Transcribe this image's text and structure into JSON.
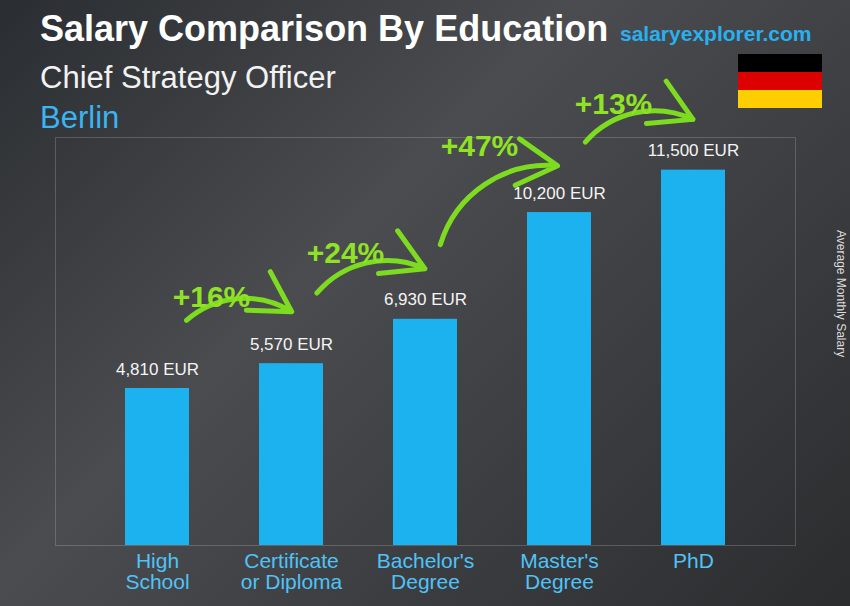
{
  "chart_data": {
    "type": "bar",
    "title": "Salary Comparison By Education",
    "subtitle": "Chief Strategy Officer",
    "location": "Berlin",
    "source": "salaryexplorer.com",
    "ylabel": "Average Monthly Salary",
    "categories": [
      "High School",
      "Certificate or Diploma",
      "Bachelor's Degree",
      "Master's Degree",
      "PhD"
    ],
    "values": [
      4810,
      5570,
      6930,
      10200,
      11500
    ],
    "value_labels": [
      "4,810 EUR",
      "5,570 EUR",
      "6,930 EUR",
      "10,200 EUR",
      "11,500 EUR"
    ],
    "annotations": [
      "+16%",
      "+24%",
      "+47%",
      "+13%"
    ],
    "color": "#1cb2ef",
    "ylim": [
      0,
      12500
    ],
    "yticks": [],
    "tick_labels": "x",
    "data_labels": true
  }
}
